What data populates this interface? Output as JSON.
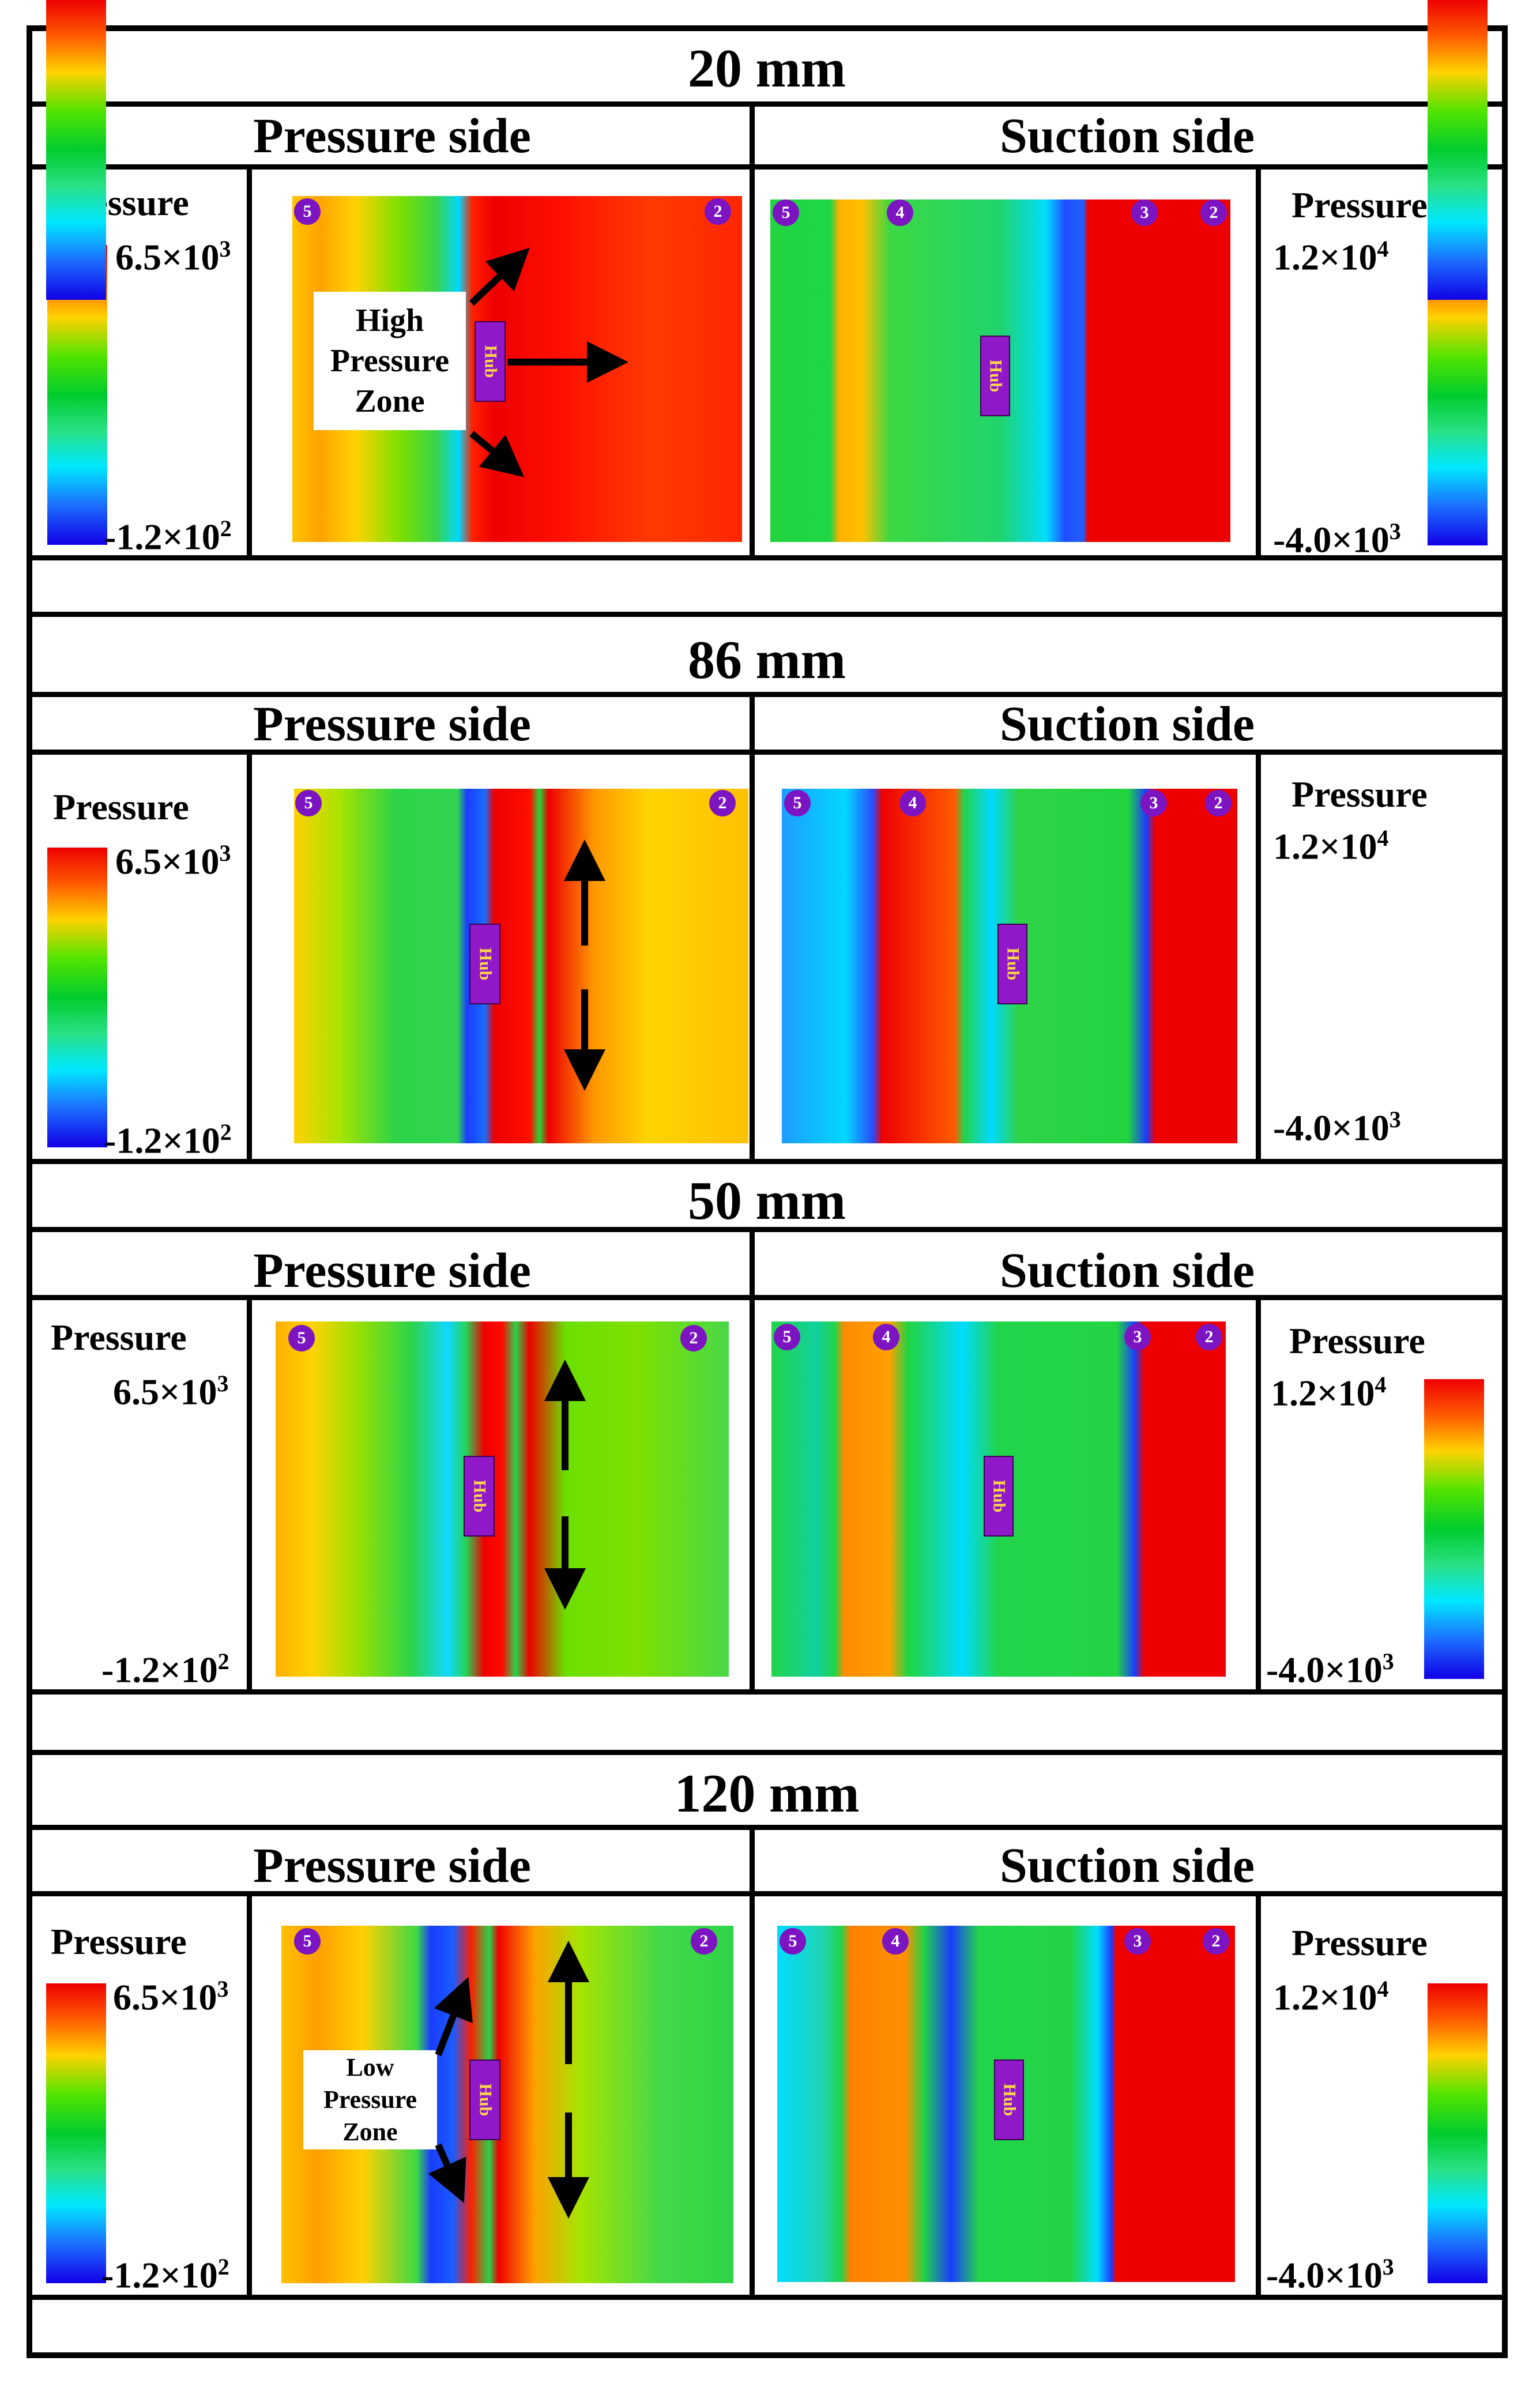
{
  "sections": [
    {
      "title": "20 mm",
      "pressure_side_label": "Pressure side",
      "suction_side_label": "Suction side"
    },
    {
      "title": "86 mm",
      "pressure_side_label": "Pressure side",
      "suction_side_label": "Suction side"
    },
    {
      "title": "50 mm",
      "pressure_side_label": "Pressure side",
      "suction_side_label": "Suction side"
    },
    {
      "title": "120 mm",
      "pressure_side_label": "Pressure side",
      "suction_side_label": "Suction side"
    }
  ],
  "legend": {
    "label": "Pressure",
    "pressure_side": {
      "max_mantissa": "6.5×10",
      "max_exp": "3",
      "min_mantissa": "-1.2×10",
      "min_exp": "2"
    },
    "suction_side": {
      "max_mantissa": "1.2×10",
      "max_exp": "4",
      "min_mantissa": "-4.0×10",
      "min_exp": "3"
    }
  },
  "hub_label": "Hub",
  "annotations": {
    "high_pressure_zone": [
      "High",
      "Pressure",
      "Zone"
    ],
    "low_pressure_zone": [
      "Low",
      "Pressure",
      "Zone"
    ]
  },
  "blade_markers": {
    "pressure_side": [
      "5",
      "2"
    ],
    "suction_side": [
      "5",
      "4",
      "3",
      "2"
    ]
  },
  "colors": {
    "red": "#ee0000",
    "orange": "#ff7a00",
    "yellow": "#ffd200",
    "green": "#10d23a",
    "cyan": "#00e0ff",
    "blue": "#1a3cff",
    "hub": "#8f19c8",
    "badge": "#7c14c2"
  }
}
